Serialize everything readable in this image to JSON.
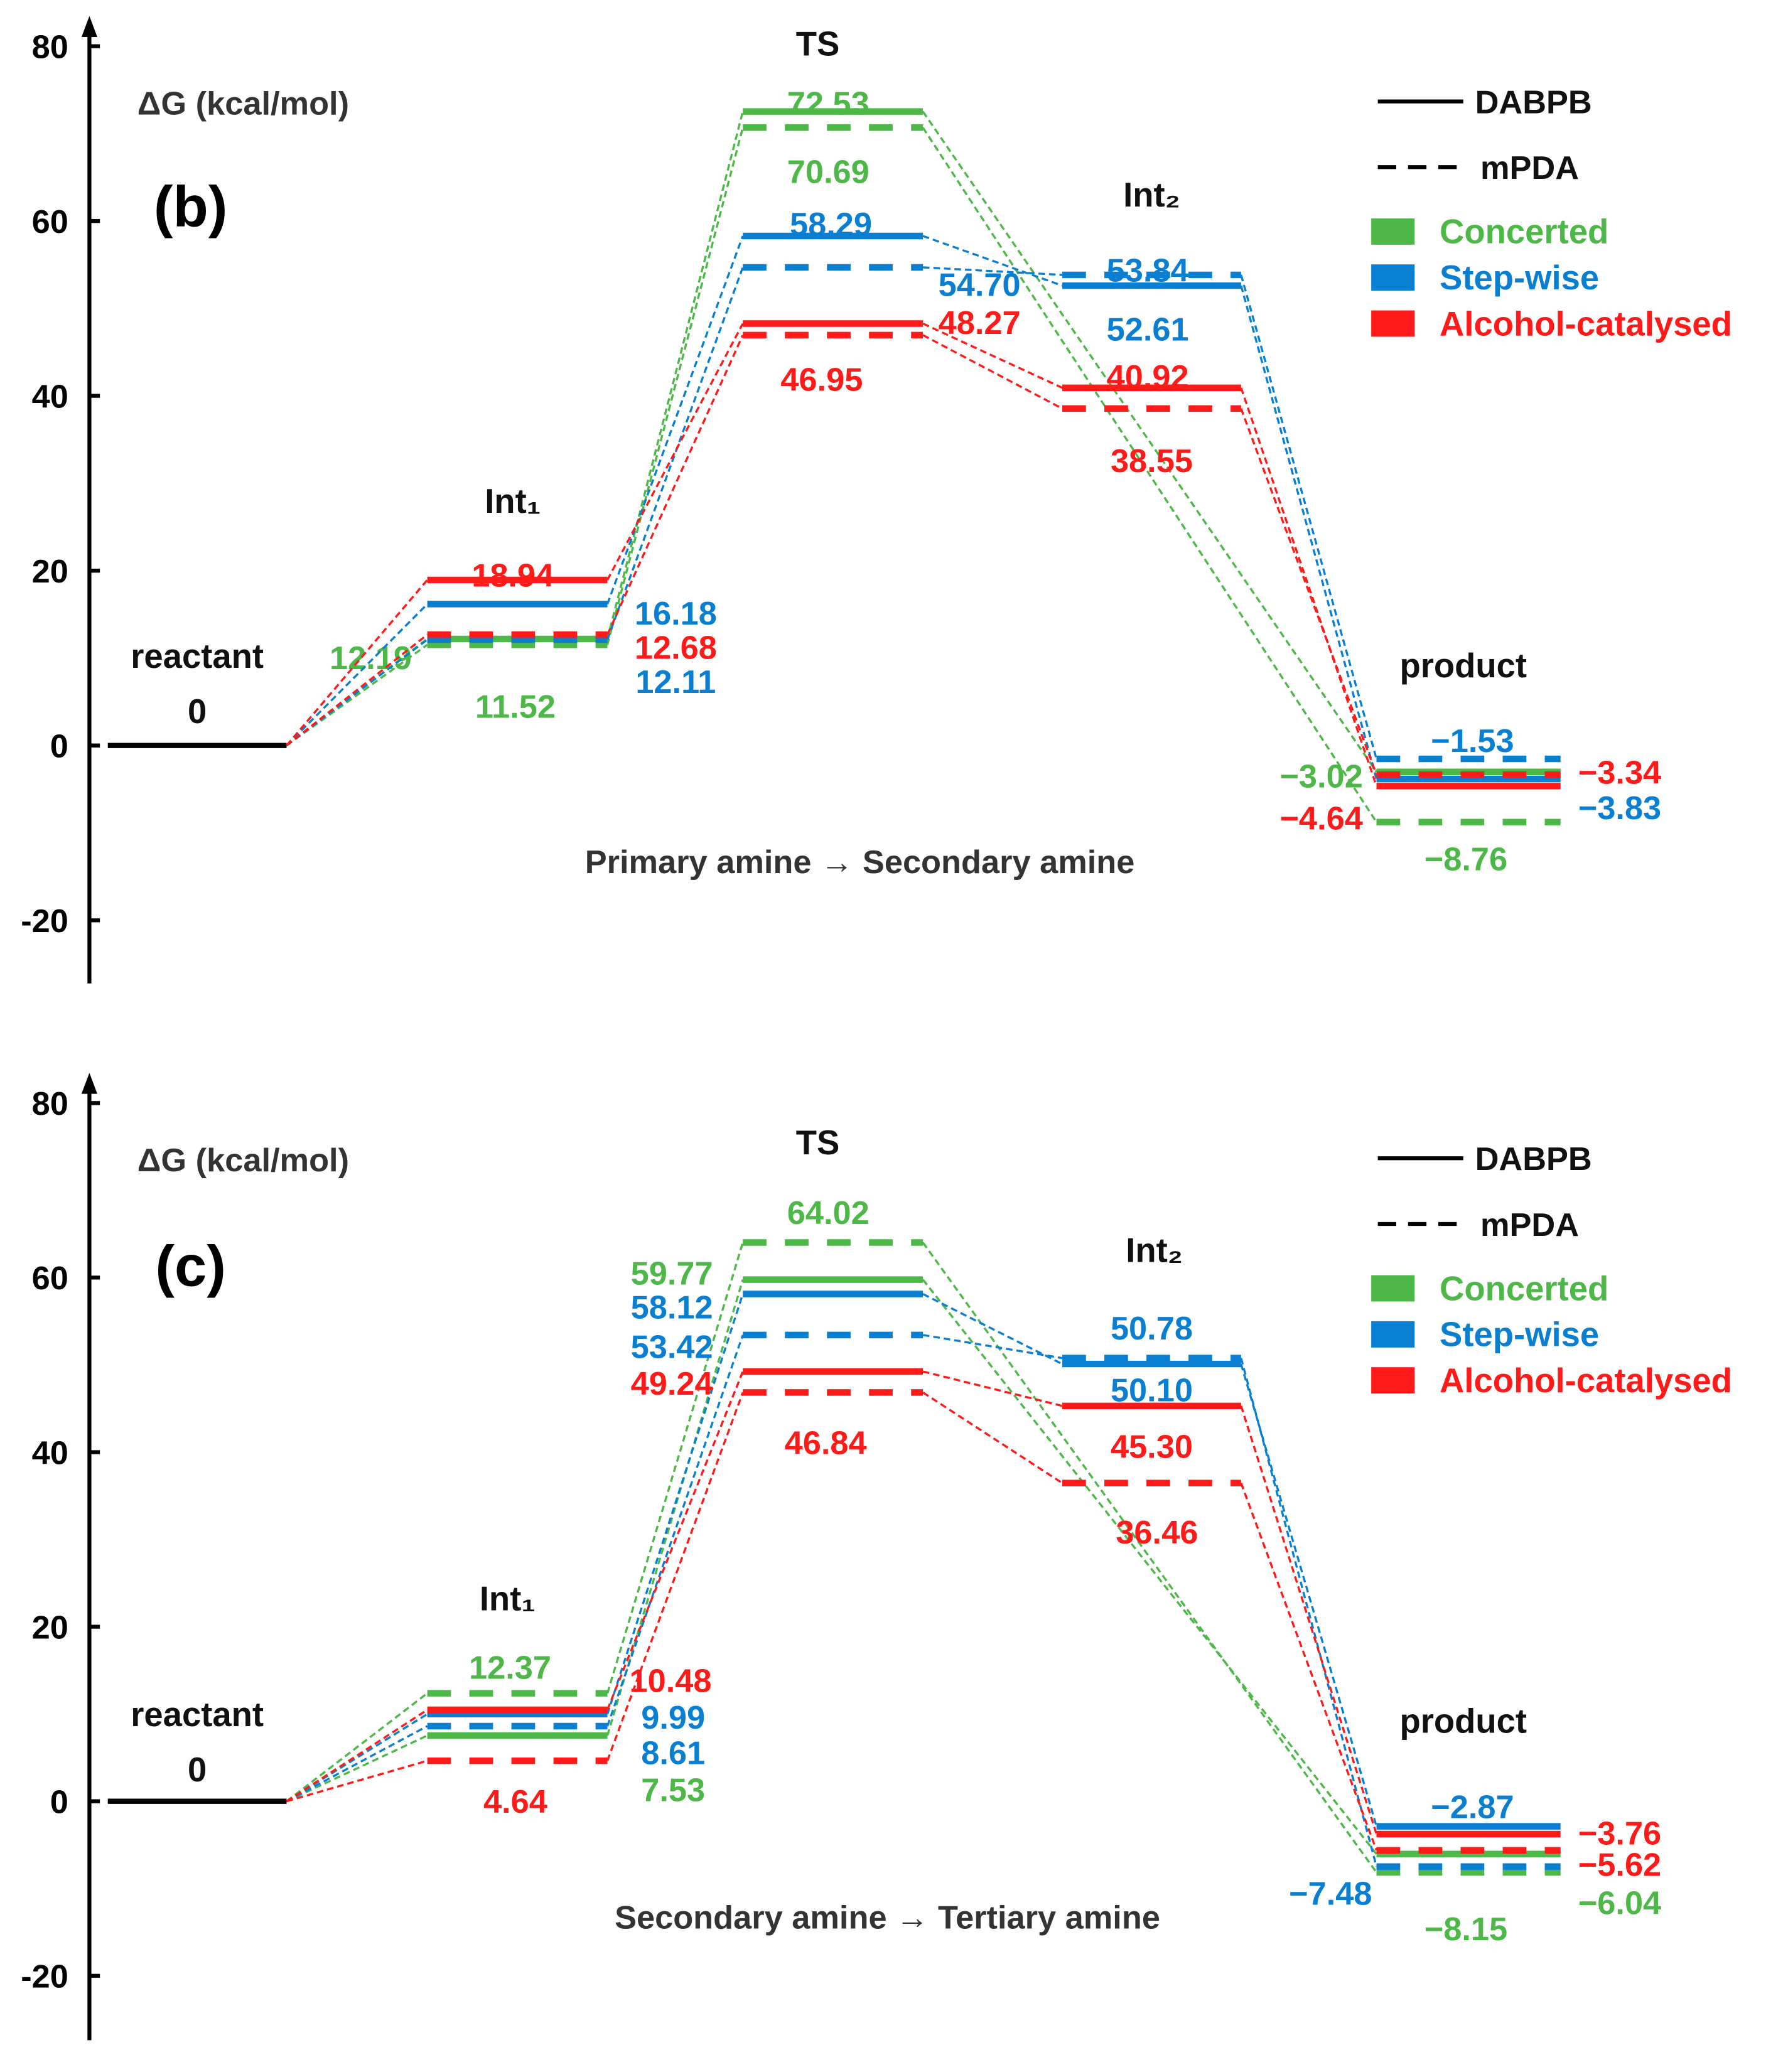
{
  "colors": {
    "concerted": "#4db848",
    "stepwise": "#0a7fd1",
    "alcohol": "#ff1a1a",
    "axis": "#000000"
  },
  "legend": {
    "solid_label": "DABPB",
    "dashed_label": "mPDA",
    "concerted": "Concerted",
    "stepwise": "Step-wise",
    "alcohol": "Alcohol-catalysed"
  },
  "chart_data": [
    {
      "type": "energy-diagram",
      "panel_label": "(b)",
      "ylabel": "ΔG (kcal/mol)",
      "caption": "Primary amine → Secondary amine",
      "ylim": [
        -20,
        80
      ],
      "yticks": [
        "80",
        "60",
        "40",
        "20",
        "0",
        "-20"
      ],
      "states": [
        "reactant",
        "Int₁",
        "TS",
        "Int₂",
        "product"
      ],
      "reactant_value": "0",
      "series": [
        {
          "name": "Concerted DABPB",
          "pathway": "concerted",
          "material": "DABPB",
          "style": "solid",
          "values": [
            0,
            12.19,
            72.53,
            null,
            -3.02
          ],
          "labels": [
            "",
            "12.19",
            "72.53",
            "",
            "−3.02"
          ]
        },
        {
          "name": "Concerted mPDA",
          "pathway": "concerted",
          "material": "mPDA",
          "style": "dashed",
          "values": [
            0,
            11.52,
            70.69,
            null,
            -8.76
          ],
          "labels": [
            "",
            "11.52",
            "70.69",
            "",
            "−8.76"
          ]
        },
        {
          "name": "Step-wise DABPB",
          "pathway": "stepwise",
          "material": "DABPB",
          "style": "solid",
          "values": [
            0,
            16.18,
            58.29,
            52.61,
            -3.83
          ],
          "labels": [
            "",
            "16.18",
            "58.29",
            "52.61",
            "−3.83"
          ]
        },
        {
          "name": "Step-wise mPDA",
          "pathway": "stepwise",
          "material": "mPDA",
          "style": "dashed",
          "values": [
            0,
            12.11,
            54.7,
            53.84,
            -1.53
          ],
          "labels": [
            "",
            "12.11",
            "54.70",
            "53.84",
            "−1.53"
          ]
        },
        {
          "name": "Alcohol-catalysed DABPB",
          "pathway": "alcohol",
          "material": "DABPB",
          "style": "solid",
          "values": [
            0,
            18.94,
            48.27,
            40.92,
            -4.64
          ],
          "labels": [
            "",
            "18.94",
            "48.27",
            "40.92",
            "−4.64"
          ]
        },
        {
          "name": "Alcohol-catalysed mPDA",
          "pathway": "alcohol",
          "material": "mPDA",
          "style": "dashed",
          "values": [
            0,
            12.68,
            46.95,
            38.55,
            -3.34
          ],
          "labels": [
            "",
            "12.68",
            "46.95",
            "38.55",
            "−3.34"
          ]
        }
      ]
    },
    {
      "type": "energy-diagram",
      "panel_label": "(c)",
      "ylabel": "ΔG (kcal/mol)",
      "caption": "Secondary amine → Tertiary amine",
      "ylim": [
        -20,
        80
      ],
      "yticks": [
        "80",
        "60",
        "40",
        "20",
        "0",
        "-20"
      ],
      "states": [
        "reactant",
        "Int₁",
        "TS",
        "Int₂",
        "product"
      ],
      "reactant_value": "0",
      "series": [
        {
          "name": "Concerted DABPB",
          "pathway": "concerted",
          "material": "DABPB",
          "style": "solid",
          "values": [
            0,
            7.53,
            59.77,
            null,
            -6.04
          ],
          "labels": [
            "",
            "7.53",
            "59.77",
            "",
            "−6.04"
          ]
        },
        {
          "name": "Concerted mPDA",
          "pathway": "concerted",
          "material": "mPDA",
          "style": "dashed",
          "values": [
            0,
            12.37,
            64.02,
            null,
            -8.15
          ],
          "labels": [
            "",
            "12.37",
            "64.02",
            "",
            "−8.15"
          ]
        },
        {
          "name": "Step-wise DABPB",
          "pathway": "stepwise",
          "material": "DABPB",
          "style": "solid",
          "values": [
            0,
            9.99,
            58.12,
            50.1,
            -2.87
          ],
          "labels": [
            "",
            "9.99",
            "58.12",
            "50.10",
            "−2.87"
          ]
        },
        {
          "name": "Step-wise mPDA",
          "pathway": "stepwise",
          "material": "mPDA",
          "style": "dashed",
          "values": [
            0,
            8.61,
            53.42,
            50.78,
            -7.48
          ],
          "labels": [
            "",
            "8.61",
            "53.42",
            "50.78",
            "−7.48"
          ]
        },
        {
          "name": "Alcohol-catalysed DABPB",
          "pathway": "alcohol",
          "material": "DABPB",
          "style": "solid",
          "values": [
            0,
            10.48,
            49.24,
            45.3,
            -3.76
          ],
          "labels": [
            "",
            "10.48",
            "49.24",
            "45.30",
            "−3.76"
          ]
        },
        {
          "name": "Alcohol-catalysed mPDA",
          "pathway": "alcohol",
          "material": "mPDA",
          "style": "dashed",
          "values": [
            0,
            4.64,
            46.84,
            36.46,
            -5.62
          ],
          "labels": [
            "",
            "4.64",
            "46.84",
            "36.46",
            "−5.62"
          ]
        }
      ]
    }
  ]
}
